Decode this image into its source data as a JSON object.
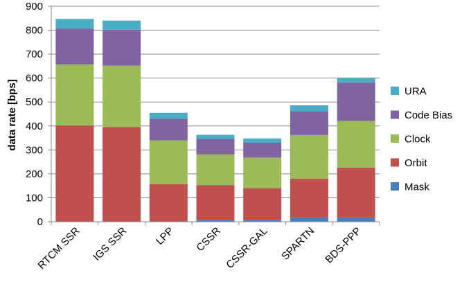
{
  "chart_data": {
    "type": "bar",
    "stacked": true,
    "title": "",
    "xlabel": "",
    "ylabel": "data rate [bps]",
    "ylim": [
      0,
      900
    ],
    "yticks": [
      0,
      100,
      200,
      300,
      400,
      500,
      600,
      700,
      800,
      900
    ],
    "grid": "horizontal",
    "legend_position": "right",
    "categories": [
      "RTCM SSR",
      "IGS SSR",
      "LPP",
      "CSSR",
      "CSSR-GAL",
      "SPARTN",
      "BDS-PPP"
    ],
    "series": [
      {
        "name": "Mask",
        "color": "#4a7ebb",
        "values": [
          0,
          0,
          0,
          8,
          8,
          20,
          18
        ]
      },
      {
        "name": "Orbit",
        "color": "#c0504d",
        "values": [
          402,
          395,
          157,
          145,
          132,
          160,
          208
        ]
      },
      {
        "name": "Clock",
        "color": "#9bbb59",
        "values": [
          255,
          257,
          183,
          128,
          128,
          182,
          195
        ]
      },
      {
        "name": "Code Bias",
        "color": "#8064a2",
        "values": [
          150,
          150,
          90,
          65,
          62,
          100,
          160
        ]
      },
      {
        "name": "URA",
        "color": "#4bacc6",
        "values": [
          40,
          38,
          25,
          17,
          18,
          24,
          18
        ]
      }
    ]
  }
}
